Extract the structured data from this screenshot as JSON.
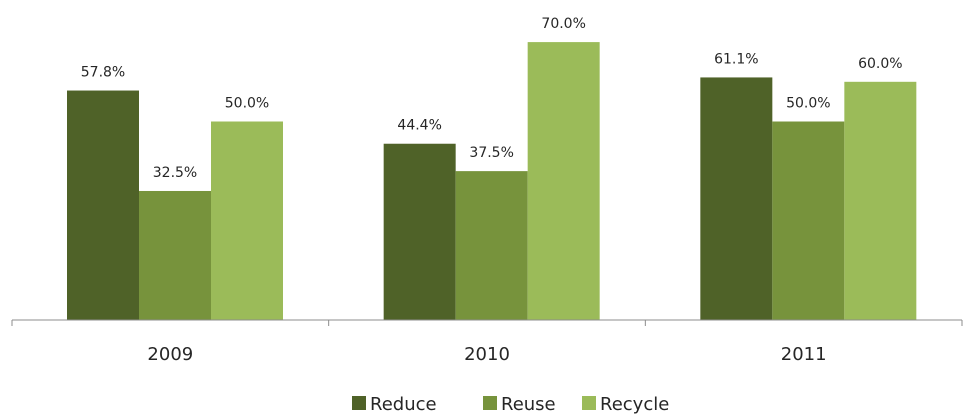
{
  "chart_data": {
    "type": "bar",
    "categories": [
      "2009",
      "2010",
      "2011"
    ],
    "series": [
      {
        "name": "Reduce",
        "values": [
          57.8,
          44.4,
          61.1
        ],
        "labels": [
          "57.8%",
          "44.4%",
          "61.1%"
        ],
        "color": "#4f6228"
      },
      {
        "name": "Reuse",
        "values": [
          32.5,
          37.5,
          50.0
        ],
        "labels": [
          "32.5%",
          "37.5%",
          "50.0%"
        ],
        "color": "#77933c"
      },
      {
        "name": "Recycle",
        "values": [
          50.0,
          70.0,
          60.0
        ],
        "labels": [
          "50.0%",
          "70.0%",
          "60.0%"
        ],
        "color": "#9bbb59"
      }
    ],
    "title": "",
    "xlabel": "",
    "ylabel": "",
    "ylim": [
      0,
      75
    ],
    "grid": false,
    "legend": "bottom-center"
  }
}
